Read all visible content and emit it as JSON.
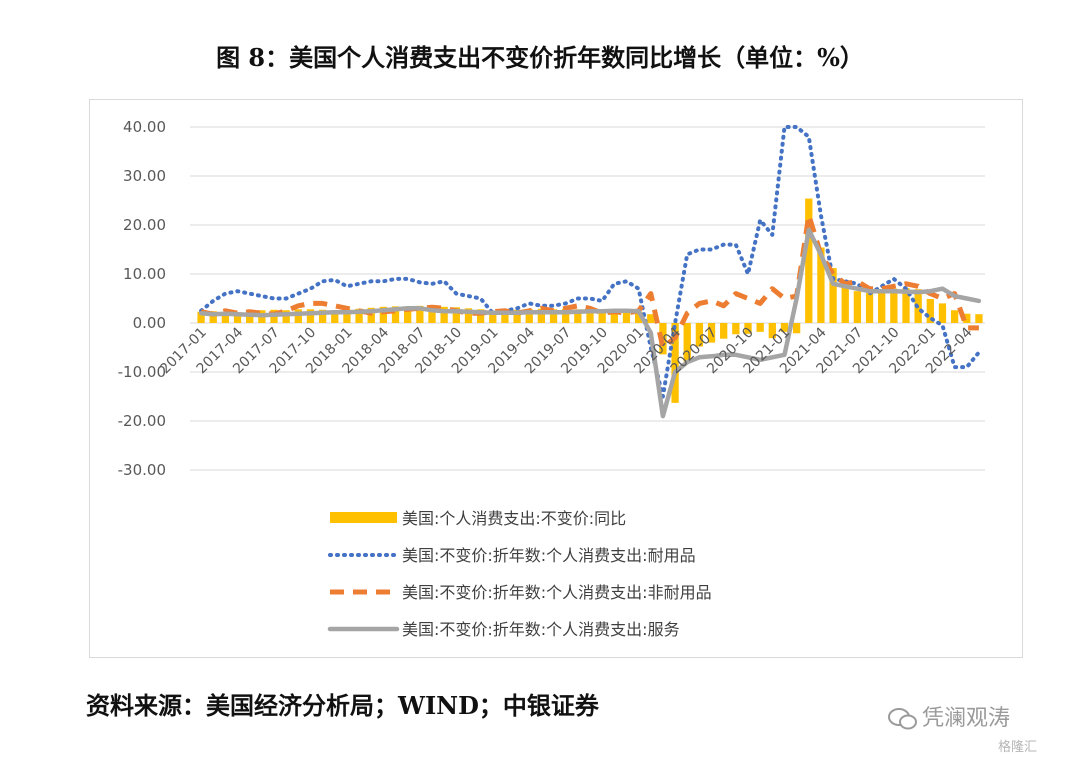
{
  "title": "图 8：美国个人消费支出不变价折年数同比增长（单位：%）",
  "source": "资料来源：美国经济分析局；WIND；中银证券",
  "watermark": "凭澜观涛",
  "brand": "格隆汇",
  "colors": {
    "total": "#FFC000",
    "durable": "#4472C4",
    "nondurable": "#ED7D31",
    "services": "#A5A5A5",
    "grid": "#D9D9D9"
  },
  "chart_data": {
    "type": "bar",
    "y_ticks": [
      "40.00",
      "30.00",
      "20.00",
      "10.00",
      "0.00",
      "-10.00",
      "-20.00",
      "-30.00"
    ],
    "ylim": [
      -30,
      40
    ],
    "x_tick_labels": [
      "2017-01",
      "2017-04",
      "2017-07",
      "2017-10",
      "2018-01",
      "2018-04",
      "2018-07",
      "2018-10",
      "2019-01",
      "2019-04",
      "2019-07",
      "2019-10",
      "2020-01",
      "2020-04",
      "2020-07",
      "2020-10",
      "2021-01",
      "2021-04",
      "2021-07",
      "2021-10",
      "2022-01",
      "2022-04"
    ],
    "series": [
      {
        "name": "美国:个人消费支出:不变价:同比",
        "type": "bar",
        "values": [
          2.3,
          2.4,
          2.3,
          2.2,
          2.3,
          2.6,
          2.7,
          2.6,
          2.8,
          2.8,
          2.7,
          2.6,
          2.8,
          2.9,
          3.1,
          3.3,
          3.4,
          3.4,
          3.5,
          3.4,
          3.3,
          3.2,
          3.0,
          2.8,
          2.5,
          2.6,
          2.7,
          2.8,
          2.9,
          2.8,
          2.9,
          2.8,
          2.7,
          2.6,
          2.4,
          2.3,
          2.3,
          1.8,
          -6.4,
          -16.3,
          -7.9,
          -4.8,
          -4.0,
          -3.2,
          -2.3,
          -2.2,
          -1.8,
          -3.1,
          -1.8,
          -2.1,
          25.4,
          15.4,
          11.2,
          8.3,
          6.5,
          6.1,
          6.2,
          7.0,
          7.1,
          6.9,
          4.9,
          4.0,
          2.6,
          1.9,
          1.8
        ]
      },
      {
        "name": "美国:不变价:折年数:个人消费支出:耐用品",
        "type": "line",
        "values": [
          2.5,
          4.5,
          6.0,
          6.5,
          6.0,
          5.5,
          5.0,
          5.0,
          6.0,
          7.0,
          8.5,
          8.8,
          7.5,
          8.0,
          8.5,
          8.5,
          9.0,
          9.0,
          8.3,
          8.0,
          8.5,
          6.0,
          5.5,
          5.0,
          2.0,
          2.5,
          3.0,
          4.0,
          3.5,
          3.5,
          4.0,
          5.0,
          5.0,
          4.5,
          8.0,
          8.5,
          7.0,
          -5.0,
          -15.0,
          0.0,
          14.0,
          15.0,
          15.0,
          16.0,
          16.0,
          10.0,
          21.0,
          18.0,
          40.0,
          40.0,
          38.0,
          22.0,
          9.0,
          8.5,
          8.0,
          6.0,
          7.5,
          9.0,
          7.0,
          3.0,
          1.0,
          -0.5,
          -9.0,
          -9.0,
          -6.0
        ]
      },
      {
        "name": "美国:不变价:折年数:个人消费支出:非耐用品",
        "type": "line",
        "values": [
          2.3,
          1.8,
          2.5,
          2.0,
          2.3,
          2.0,
          1.8,
          2.5,
          3.5,
          4.0,
          4.0,
          3.5,
          3.0,
          2.5,
          2.0,
          2.3,
          2.5,
          2.8,
          3.0,
          3.2,
          3.0,
          2.5,
          2.0,
          2.0,
          2.3,
          2.5,
          2.0,
          2.5,
          3.0,
          2.5,
          3.0,
          3.5,
          3.0,
          2.0,
          2.3,
          2.0,
          2.5,
          6.0,
          -5.0,
          -3.0,
          2.0,
          4.0,
          4.5,
          3.5,
          6.0,
          5.0,
          4.0,
          7.0,
          5.0,
          5.5,
          22.0,
          14.0,
          10.0,
          8.0,
          8.5,
          7.0,
          7.0,
          7.5,
          8.0,
          7.5,
          6.0,
          5.0,
          6.0,
          -1.0,
          -1.0
        ]
      },
      {
        "name": "美国:不变价:折年数:个人消费支出:服务",
        "type": "line",
        "values": [
          2.0,
          1.8,
          1.9,
          1.8,
          1.7,
          1.6,
          1.7,
          1.8,
          1.9,
          2.0,
          2.1,
          2.2,
          2.2,
          2.3,
          2.4,
          2.6,
          2.8,
          3.0,
          3.0,
          2.6,
          2.4,
          2.4,
          2.3,
          2.2,
          2.1,
          2.1,
          2.1,
          2.2,
          2.2,
          2.2,
          2.2,
          2.3,
          2.4,
          2.4,
          2.5,
          2.5,
          2.4,
          -2.0,
          -19.0,
          -10.0,
          -8.0,
          -7.0,
          -6.8,
          -6.5,
          -6.5,
          -7.0,
          -7.5,
          -7.0,
          -6.5,
          5.0,
          19.0,
          14.0,
          8.0,
          7.5,
          7.0,
          6.5,
          6.5,
          6.5,
          6.4,
          6.3,
          6.5,
          7.0,
          5.5,
          5.0,
          4.5
        ]
      }
    ]
  }
}
